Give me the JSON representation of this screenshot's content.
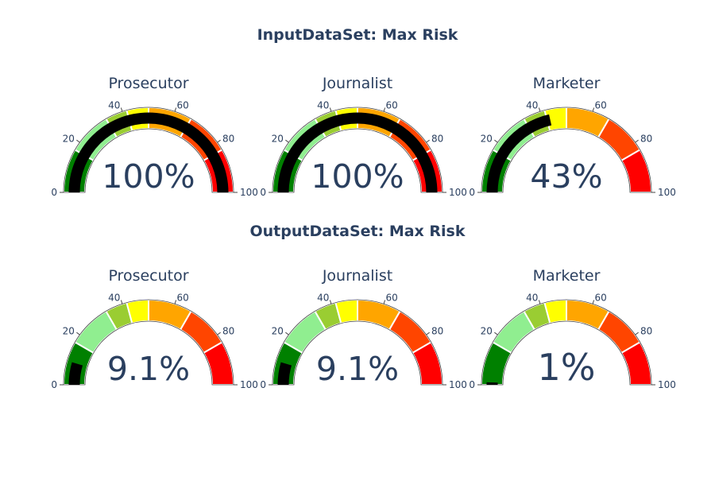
{
  "chart_data": [
    {
      "type": "gauge",
      "section": "InputDataSet: Max Risk",
      "title": "Prosecutor",
      "value": 100,
      "display_value": "100%",
      "range": [
        0,
        100
      ],
      "ticks": [
        0,
        20,
        40,
        60,
        80,
        100
      ],
      "steps": [
        {
          "range": [
            0,
            16.7
          ],
          "color": "#008000"
        },
        {
          "range": [
            16.7,
            33.3
          ],
          "color": "#90ee90"
        },
        {
          "range": [
            33.3,
            41.7
          ],
          "color": "#9acd32"
        },
        {
          "range": [
            41.7,
            50
          ],
          "color": "#ffff00"
        },
        {
          "range": [
            50,
            66.7
          ],
          "color": "#ffa500"
        },
        {
          "range": [
            66.7,
            83.3
          ],
          "color": "#ff4500"
        },
        {
          "range": [
            83.3,
            100
          ],
          "color": "#ff0000"
        }
      ],
      "bar_color": "#000000"
    },
    {
      "type": "gauge",
      "section": "InputDataSet: Max Risk",
      "title": "Journalist",
      "value": 100,
      "display_value": "100%",
      "range": [
        0,
        100
      ],
      "ticks": [
        0,
        20,
        40,
        60,
        80,
        100
      ],
      "steps": [
        {
          "range": [
            0,
            16.7
          ],
          "color": "#008000"
        },
        {
          "range": [
            16.7,
            33.3
          ],
          "color": "#90ee90"
        },
        {
          "range": [
            33.3,
            41.7
          ],
          "color": "#9acd32"
        },
        {
          "range": [
            41.7,
            50
          ],
          "color": "#ffff00"
        },
        {
          "range": [
            50,
            66.7
          ],
          "color": "#ffa500"
        },
        {
          "range": [
            66.7,
            83.3
          ],
          "color": "#ff4500"
        },
        {
          "range": [
            83.3,
            100
          ],
          "color": "#ff0000"
        }
      ],
      "bar_color": "#000000"
    },
    {
      "type": "gauge",
      "section": "InputDataSet: Max Risk",
      "title": "Marketer",
      "value": 43,
      "display_value": "43%",
      "range": [
        0,
        100
      ],
      "ticks": [
        0,
        20,
        40,
        60,
        80,
        100
      ],
      "steps": [
        {
          "range": [
            0,
            16.7
          ],
          "color": "#008000"
        },
        {
          "range": [
            16.7,
            33.3
          ],
          "color": "#90ee90"
        },
        {
          "range": [
            33.3,
            41.7
          ],
          "color": "#9acd32"
        },
        {
          "range": [
            41.7,
            50
          ],
          "color": "#ffff00"
        },
        {
          "range": [
            50,
            66.7
          ],
          "color": "#ffa500"
        },
        {
          "range": [
            66.7,
            83.3
          ],
          "color": "#ff4500"
        },
        {
          "range": [
            83.3,
            100
          ],
          "color": "#ff0000"
        }
      ],
      "bar_color": "#000000"
    },
    {
      "type": "gauge",
      "section": "OutputDataSet: Max Risk",
      "title": "Prosecutor",
      "value": 9.1,
      "display_value": "9.1%",
      "range": [
        0,
        100
      ],
      "ticks": [
        0,
        20,
        40,
        60,
        80,
        100
      ],
      "steps": [
        {
          "range": [
            0,
            16.7
          ],
          "color": "#008000"
        },
        {
          "range": [
            16.7,
            33.3
          ],
          "color": "#90ee90"
        },
        {
          "range": [
            33.3,
            41.7
          ],
          "color": "#9acd32"
        },
        {
          "range": [
            41.7,
            50
          ],
          "color": "#ffff00"
        },
        {
          "range": [
            50,
            66.7
          ],
          "color": "#ffa500"
        },
        {
          "range": [
            66.7,
            83.3
          ],
          "color": "#ff4500"
        },
        {
          "range": [
            83.3,
            100
          ],
          "color": "#ff0000"
        }
      ],
      "bar_color": "#000000"
    },
    {
      "type": "gauge",
      "section": "OutputDataSet: Max Risk",
      "title": "Journalist",
      "value": 9.1,
      "display_value": "9.1%",
      "range": [
        0,
        100
      ],
      "ticks": [
        0,
        20,
        40,
        60,
        80,
        100
      ],
      "steps": [
        {
          "range": [
            0,
            16.7
          ],
          "color": "#008000"
        },
        {
          "range": [
            16.7,
            33.3
          ],
          "color": "#90ee90"
        },
        {
          "range": [
            33.3,
            41.7
          ],
          "color": "#9acd32"
        },
        {
          "range": [
            41.7,
            50
          ],
          "color": "#ffff00"
        },
        {
          "range": [
            50,
            66.7
          ],
          "color": "#ffa500"
        },
        {
          "range": [
            66.7,
            83.3
          ],
          "color": "#ff4500"
        },
        {
          "range": [
            83.3,
            100
          ],
          "color": "#ff0000"
        }
      ],
      "bar_color": "#000000"
    },
    {
      "type": "gauge",
      "section": "OutputDataSet: Max Risk",
      "title": "Marketer",
      "value": 1,
      "display_value": "1%",
      "range": [
        0,
        100
      ],
      "ticks": [
        0,
        20,
        40,
        60,
        80,
        100
      ],
      "steps": [
        {
          "range": [
            0,
            16.7
          ],
          "color": "#008000"
        },
        {
          "range": [
            16.7,
            33.3
          ],
          "color": "#90ee90"
        },
        {
          "range": [
            33.3,
            41.7
          ],
          "color": "#9acd32"
        },
        {
          "range": [
            41.7,
            50
          ],
          "color": "#ffff00"
        },
        {
          "range": [
            50,
            66.7
          ],
          "color": "#ffa500"
        },
        {
          "range": [
            66.7,
            83.3
          ],
          "color": "#ff4500"
        },
        {
          "range": [
            83.3,
            100
          ],
          "color": "#ff0000"
        }
      ],
      "bar_color": "#000000"
    }
  ],
  "sections": [
    {
      "title": "InputDataSet: Max Risk"
    },
    {
      "title": "OutputDataSet: Max Risk"
    }
  ],
  "colors": {
    "text": "#2a3f5f",
    "background": "#ffffff",
    "bar": "#000000"
  }
}
